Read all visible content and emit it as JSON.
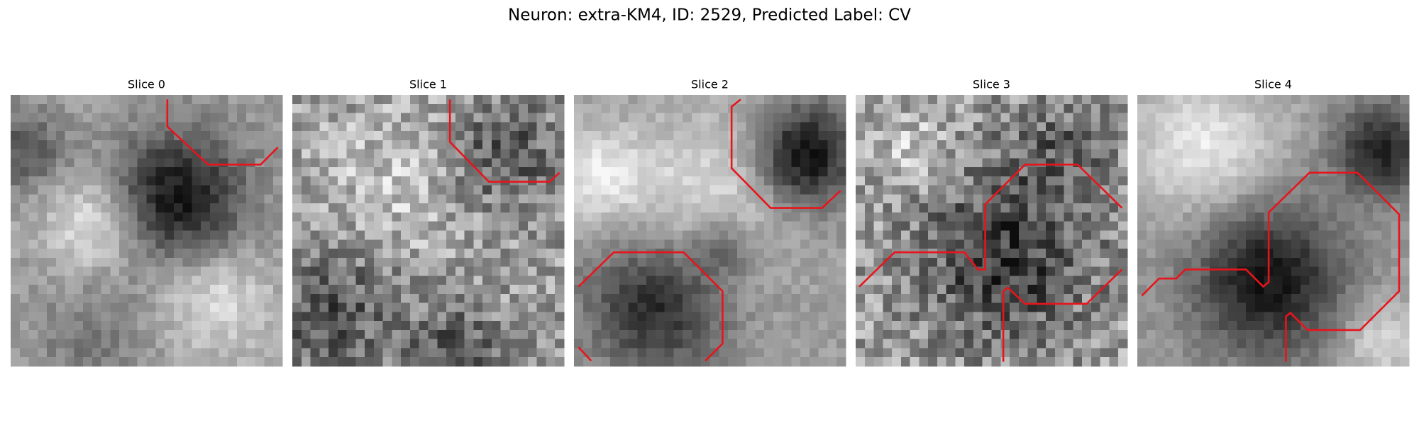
{
  "title": "Neuron: extra-KM4, ID: 2529, Predicted Label: CV",
  "panels": [
    {
      "title": "Slice 0"
    },
    {
      "title": "Slice 1"
    },
    {
      "title": "Slice 2"
    },
    {
      "title": "Slice 3"
    },
    {
      "title": "Slice 4"
    }
  ]
}
